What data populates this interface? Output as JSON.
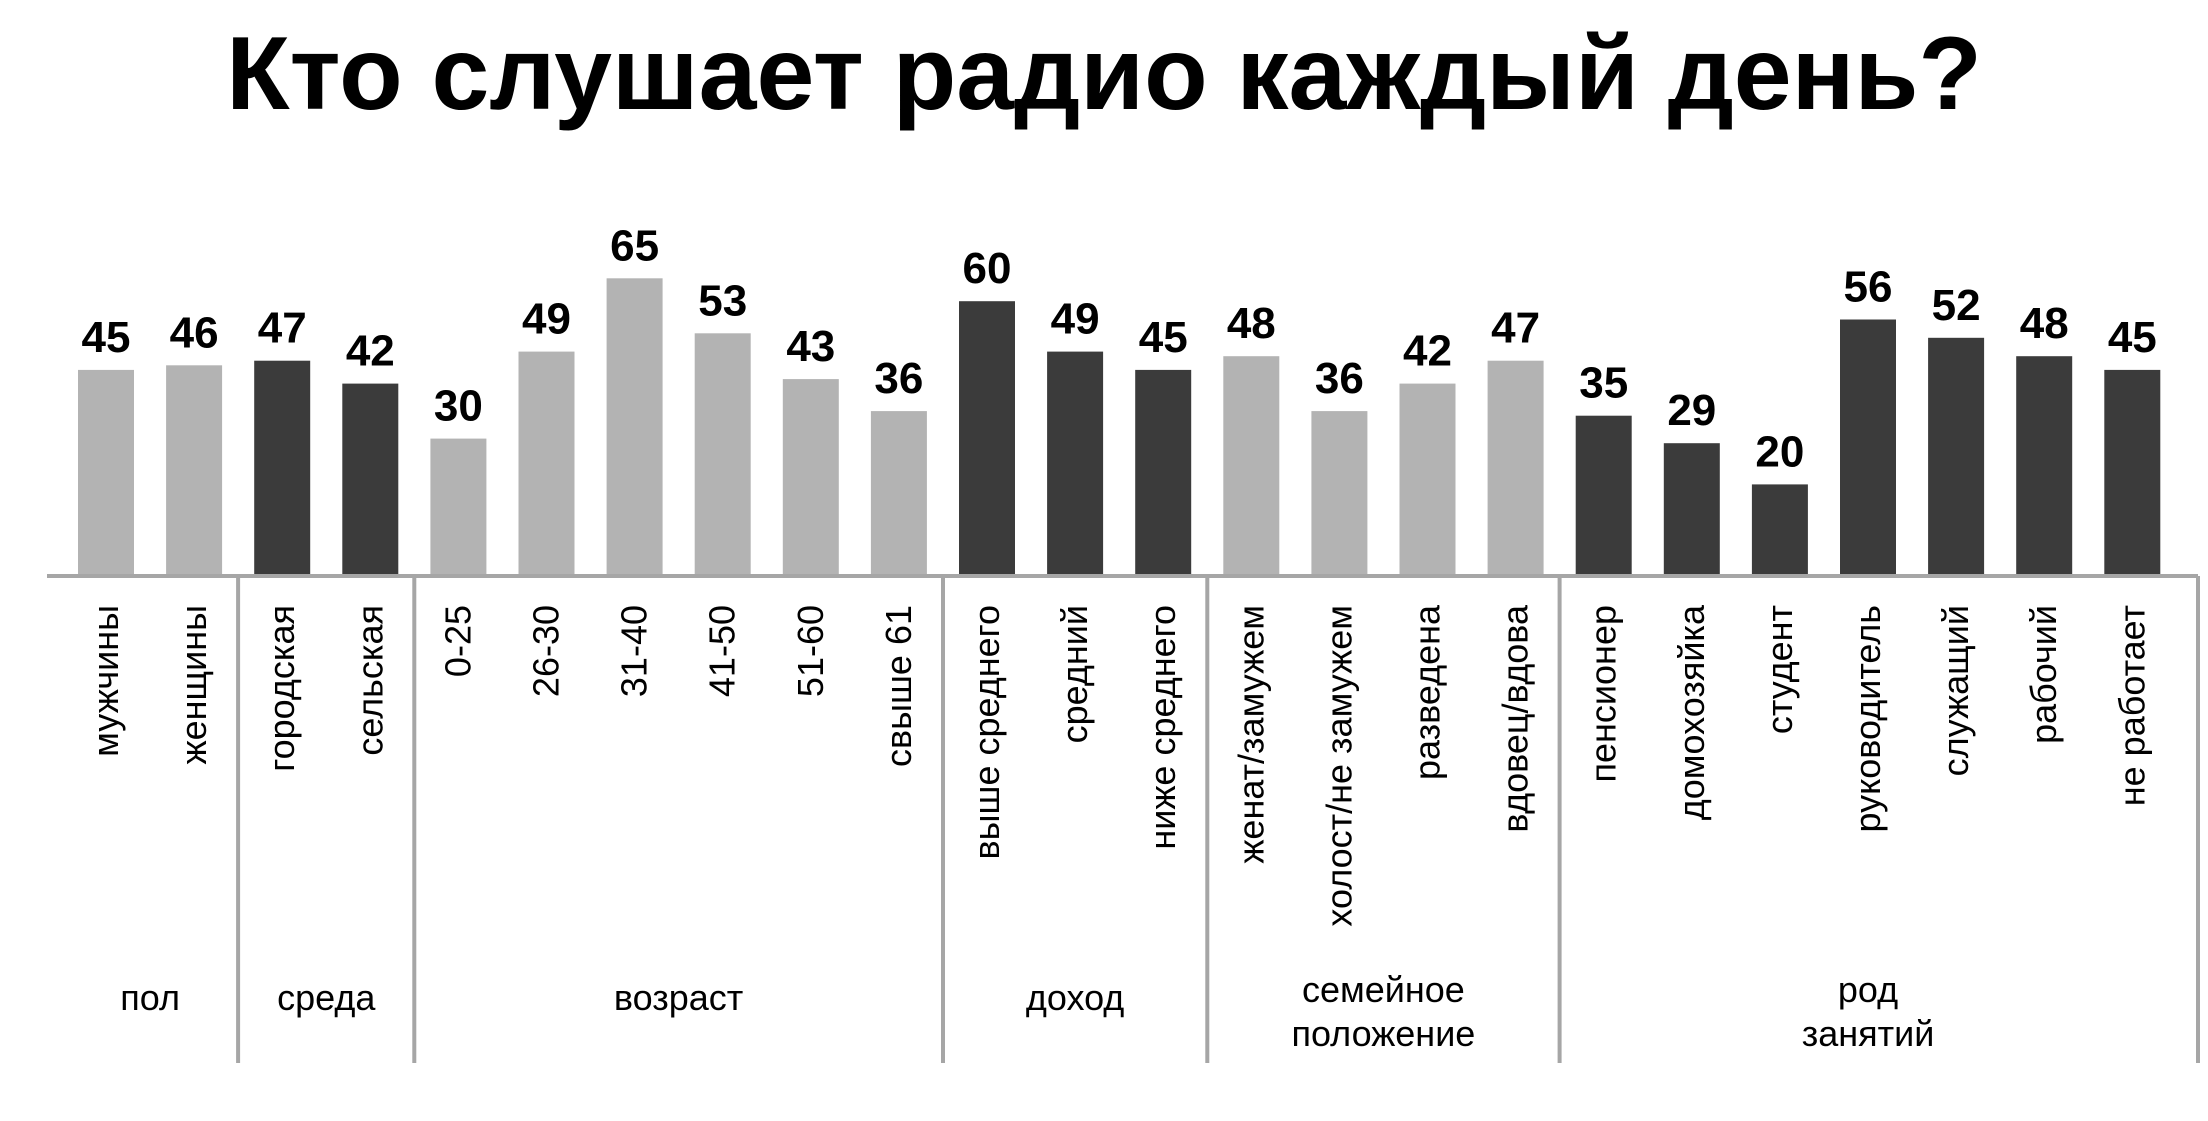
{
  "chart_data": {
    "type": "bar",
    "title": "Кто слушает радио каждый день?",
    "ylim": [
      0,
      70
    ],
    "grid": false,
    "colors": {
      "light": "#b3b3b3",
      "dark": "#3b3b3b",
      "axis": "#a6a6a6"
    },
    "groups": [
      {
        "name": "пол",
        "shade": "light",
        "categories": [
          "мужчины",
          "женщины"
        ],
        "values": [
          45,
          46
        ]
      },
      {
        "name": "среда",
        "shade": "dark",
        "categories": [
          "городская",
          "сельская"
        ],
        "values": [
          47,
          42
        ]
      },
      {
        "name": "возраст",
        "shade": "light",
        "categories": [
          "0-25",
          "26-30",
          "31-40",
          "41-50",
          "51-60",
          "свыше 61"
        ],
        "values": [
          30,
          49,
          65,
          53,
          43,
          36
        ]
      },
      {
        "name": "доход",
        "shade": "dark",
        "categories": [
          "выше среднего",
          "средний",
          "ниже среднего"
        ],
        "values": [
          60,
          49,
          45
        ]
      },
      {
        "name": "семейное положение",
        "shade": "light",
        "categories": [
          "женат/замужем",
          "холост/не замужем",
          "разведена",
          "вдовец/вдова"
        ],
        "values": [
          48,
          36,
          42,
          47
        ]
      },
      {
        "name": "род занятий",
        "shade": "dark",
        "categories": [
          "пенсионер",
          "домохозяйка",
          "студент",
          "руководитель",
          "служащий",
          "рабочий",
          "не работает"
        ],
        "values": [
          35,
          29,
          20,
          56,
          52,
          48,
          45
        ]
      }
    ]
  }
}
